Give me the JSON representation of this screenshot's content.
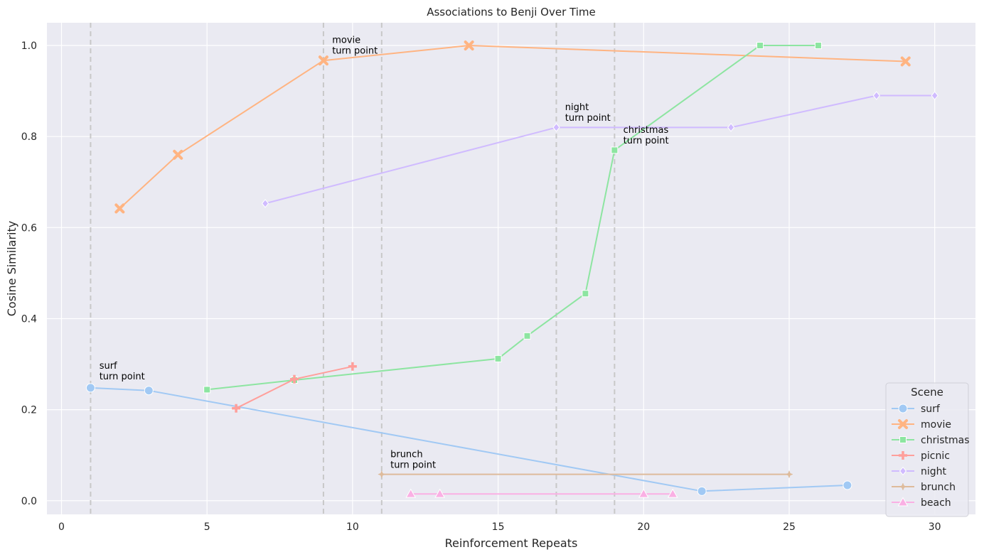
{
  "chart_data": {
    "type": "line",
    "title": "Associations to Benji Over Time",
    "xlabel": "Reinforcement Repeats",
    "ylabel": "Cosine Similarity",
    "xlim": [
      -0.5,
      31.4
    ],
    "ylim": [
      -0.03,
      1.05
    ],
    "xticks": [
      0,
      5,
      10,
      15,
      20,
      25,
      30
    ],
    "yticks": [
      0.0,
      0.2,
      0.4,
      0.6,
      0.8,
      1.0
    ],
    "xtick_labels": [
      "0",
      "5",
      "10",
      "15",
      "20",
      "25",
      "30"
    ],
    "ytick_labels": [
      "0.0",
      "0.2",
      "0.4",
      "0.6",
      "0.8",
      "1.0"
    ],
    "grid": true,
    "background": "#eaeaf2",
    "legend": {
      "title": "Scene",
      "placement": "bottom-right"
    },
    "series": [
      {
        "name": "surf",
        "color": "#a1c9f4",
        "marker": "circle",
        "points": [
          [
            1,
            0.248
          ],
          [
            3,
            0.242
          ],
          [
            22,
            0.021
          ],
          [
            27,
            0.034
          ]
        ]
      },
      {
        "name": "movie",
        "color": "#ffb482",
        "marker": "x",
        "points": [
          [
            2,
            0.642
          ],
          [
            4,
            0.76
          ],
          [
            9,
            0.967
          ],
          [
            14,
            1.0
          ],
          [
            29,
            0.965
          ]
        ]
      },
      {
        "name": "christmas",
        "color": "#8de5a1",
        "marker": "square",
        "points": [
          [
            5,
            0.244
          ],
          [
            8,
            0.265
          ],
          [
            15,
            0.312
          ],
          [
            16,
            0.362
          ],
          [
            18,
            0.455
          ],
          [
            19,
            0.77
          ],
          [
            24,
            1.0
          ],
          [
            26,
            1.0
          ]
        ]
      },
      {
        "name": "picnic",
        "color": "#ff9f9b",
        "marker": "plus",
        "points": [
          [
            6,
            0.203
          ],
          [
            8,
            0.267
          ],
          [
            10,
            0.295
          ]
        ]
      },
      {
        "name": "night",
        "color": "#d0bbff",
        "marker": "diamond",
        "points": [
          [
            7,
            0.653
          ],
          [
            17,
            0.82
          ],
          [
            23,
            0.82
          ],
          [
            28,
            0.89
          ],
          [
            30,
            0.89
          ]
        ]
      },
      {
        "name": "brunch",
        "color": "#debb9b",
        "marker": "star",
        "points": [
          [
            11,
            0.058
          ],
          [
            25,
            0.058
          ]
        ]
      },
      {
        "name": "beach",
        "color": "#fab0e4",
        "marker": "triangle",
        "points": [
          [
            12,
            0.015
          ],
          [
            13,
            0.015
          ],
          [
            20,
            0.015
          ],
          [
            21,
            0.015
          ]
        ]
      }
    ],
    "vlines": [
      1,
      9,
      11,
      17,
      19
    ],
    "annotations": [
      {
        "lines": [
          "surf",
          "turn point"
        ],
        "x": 1.3,
        "y": 0.27
      },
      {
        "lines": [
          "movie",
          "turn point"
        ],
        "x": 9.3,
        "y": 0.985
      },
      {
        "lines": [
          "brunch",
          "turn point"
        ],
        "x": 11.3,
        "y": 0.075
      },
      {
        "lines": [
          "night",
          "turn point"
        ],
        "x": 17.3,
        "y": 0.838
      },
      {
        "lines": [
          "christmas",
          "turn point"
        ],
        "x": 19.3,
        "y": 0.788
      }
    ]
  }
}
